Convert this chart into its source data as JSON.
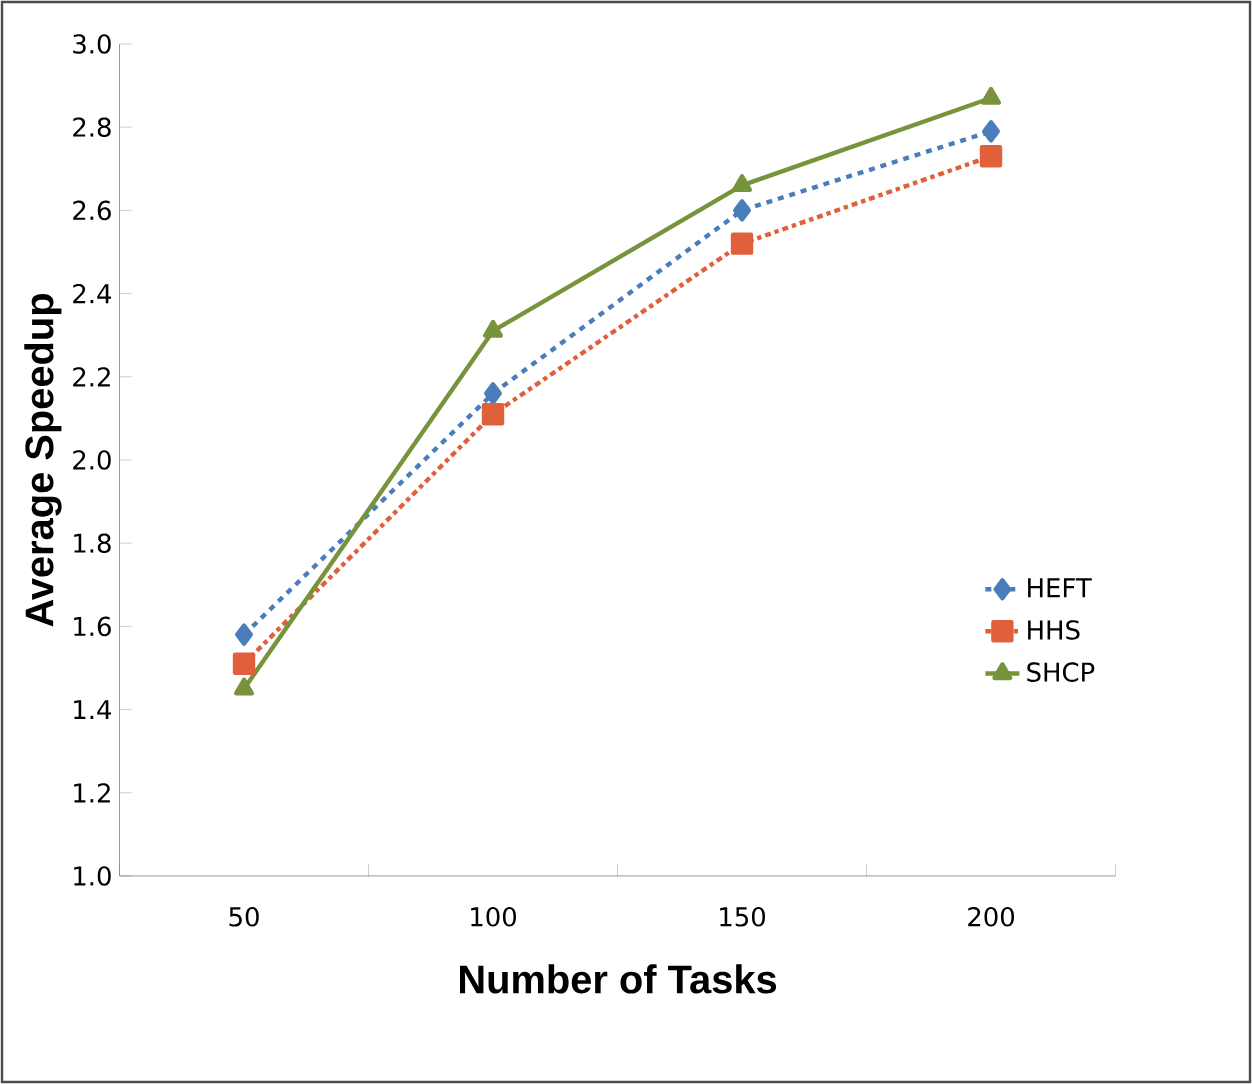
{
  "chart_data": {
    "type": "line",
    "xlabel": "Number of Tasks",
    "ylabel": "Average Speedup",
    "categories": [
      "50",
      "100",
      "150",
      "200"
    ],
    "ylim": [
      1.0,
      3.0
    ],
    "yticks": [
      {
        "value": 1.0,
        "label": "1.0"
      },
      {
        "value": 1.2,
        "label": "1.2"
      },
      {
        "value": 1.4,
        "label": "1.4"
      },
      {
        "value": 1.6,
        "label": "1.6"
      },
      {
        "value": 1.8,
        "label": "1.8"
      },
      {
        "value": 2.0,
        "label": "2.0"
      },
      {
        "value": 2.2,
        "label": "2.2"
      },
      {
        "value": 2.4,
        "label": "2.4"
      },
      {
        "value": 2.6,
        "label": "2.6"
      },
      {
        "value": 2.8,
        "label": "2.8"
      },
      {
        "value": 3.0,
        "label": "3.0"
      }
    ],
    "grid": false,
    "legend": "right",
    "series": [
      {
        "name": "HEFT",
        "color": "#4a7ebb",
        "marker": "diamond",
        "line_style": "dashed",
        "values": [
          1.58,
          2.16,
          2.6,
          2.79
        ]
      },
      {
        "name": "HHS",
        "color": "#e0603c",
        "marker": "square",
        "line_style": "dashdotted",
        "values": [
          1.51,
          2.11,
          2.52,
          2.73
        ]
      },
      {
        "name": "SHCP",
        "color": "#77933c",
        "marker": "triangle",
        "line_style": "solid",
        "values": [
          1.45,
          2.31,
          2.66,
          2.87
        ]
      }
    ]
  }
}
